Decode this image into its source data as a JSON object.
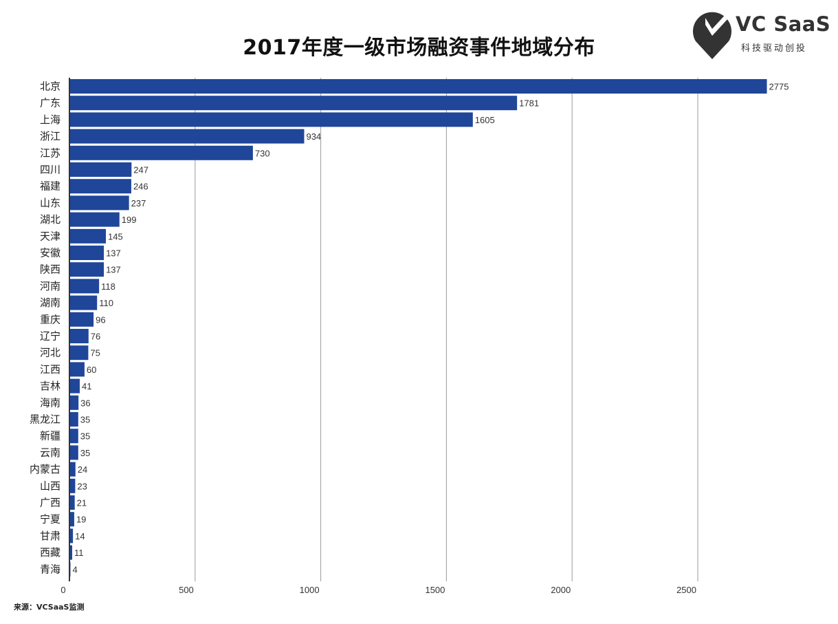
{
  "logo": {
    "name": "VC SaaS",
    "tagline": "科技驱动创投"
  },
  "source": "来源：VCSaaS监测",
  "chart_data": {
    "type": "bar",
    "orientation": "horizontal",
    "title": "2017年度一级市场融资事件地域分布",
    "xlabel": "",
    "ylabel": "",
    "xlim": [
      0,
      2900
    ],
    "x_ticks": [
      0,
      500,
      1000,
      1500,
      2000,
      2500
    ],
    "grid": true,
    "bar_color": "#1f4699",
    "categories": [
      "北京",
      "广东",
      "上海",
      "浙江",
      "江苏",
      "四川",
      "福建",
      "山东",
      "湖北",
      "天津",
      "安徽",
      "陕西",
      "河南",
      "湖南",
      "重庆",
      "辽宁",
      "河北",
      "江西",
      "吉林",
      "海南",
      "黑龙江",
      "新疆",
      "云南",
      "内蒙古",
      "山西",
      "广西",
      "宁夏",
      "甘肃",
      "西藏",
      "青海"
    ],
    "values": [
      2775,
      1781,
      1605,
      934,
      730,
      247,
      246,
      237,
      199,
      145,
      137,
      137,
      118,
      110,
      96,
      76,
      75,
      60,
      41,
      36,
      35,
      35,
      35,
      24,
      23,
      21,
      19,
      14,
      11,
      4
    ]
  }
}
